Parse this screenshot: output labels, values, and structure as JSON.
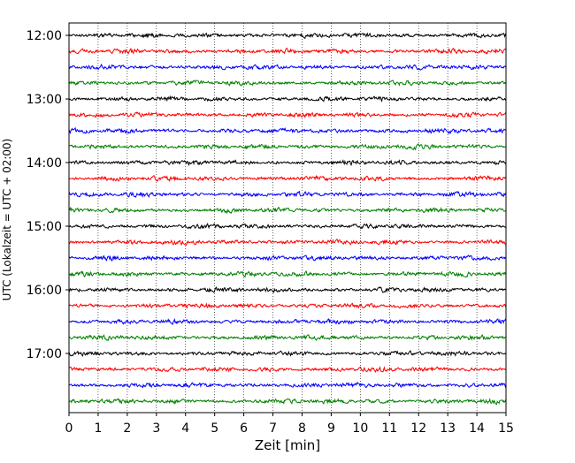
{
  "chart_data": {
    "type": "line",
    "xlabel": "Zeit  [min]",
    "ylabel": "UTC (Lokalzeit = UTC + 02:00)",
    "xlim": [
      0,
      15
    ],
    "x_ticks": [
      0,
      1,
      2,
      3,
      4,
      5,
      6,
      7,
      8,
      9,
      10,
      11,
      12,
      13,
      14,
      15
    ],
    "x_tick_labels": [
      "0",
      "1",
      "2",
      "3",
      "4",
      "5",
      "6",
      "7",
      "8",
      "9",
      "10",
      "11",
      "12",
      "13",
      "14",
      "15"
    ],
    "y_tick_labels": [
      "12:00",
      "13:00",
      "14:00",
      "15:00",
      "16:00",
      "17:00"
    ],
    "grid": "vertical dotted",
    "start_time": "12:00",
    "trace_interval_min": 15,
    "series_colors": [
      "#000000",
      "#ff0000",
      "#0000ff",
      "#008000"
    ],
    "traces": [
      {
        "start": "12:00",
        "color": "#000000"
      },
      {
        "start": "12:15",
        "color": "#ff0000"
      },
      {
        "start": "12:30",
        "color": "#0000ff"
      },
      {
        "start": "12:45",
        "color": "#008000"
      },
      {
        "start": "13:00",
        "color": "#000000"
      },
      {
        "start": "13:15",
        "color": "#ff0000"
      },
      {
        "start": "13:30",
        "color": "#0000ff"
      },
      {
        "start": "13:45",
        "color": "#008000"
      },
      {
        "start": "14:00",
        "color": "#000000"
      },
      {
        "start": "14:15",
        "color": "#ff0000"
      },
      {
        "start": "14:30",
        "color": "#0000ff"
      },
      {
        "start": "14:45",
        "color": "#008000"
      },
      {
        "start": "15:00",
        "color": "#000000"
      },
      {
        "start": "15:15",
        "color": "#ff0000"
      },
      {
        "start": "15:30",
        "color": "#0000ff"
      },
      {
        "start": "15:45",
        "color": "#008000"
      },
      {
        "start": "16:00",
        "color": "#000000"
      },
      {
        "start": "16:15",
        "color": "#ff0000"
      },
      {
        "start": "16:30",
        "color": "#0000ff"
      },
      {
        "start": "16:45",
        "color": "#008000"
      },
      {
        "start": "17:00",
        "color": "#000000"
      },
      {
        "start": "17:15",
        "color": "#ff0000"
      },
      {
        "start": "17:30",
        "color": "#0000ff"
      },
      {
        "start": "17:45",
        "color": "#008000"
      }
    ]
  }
}
